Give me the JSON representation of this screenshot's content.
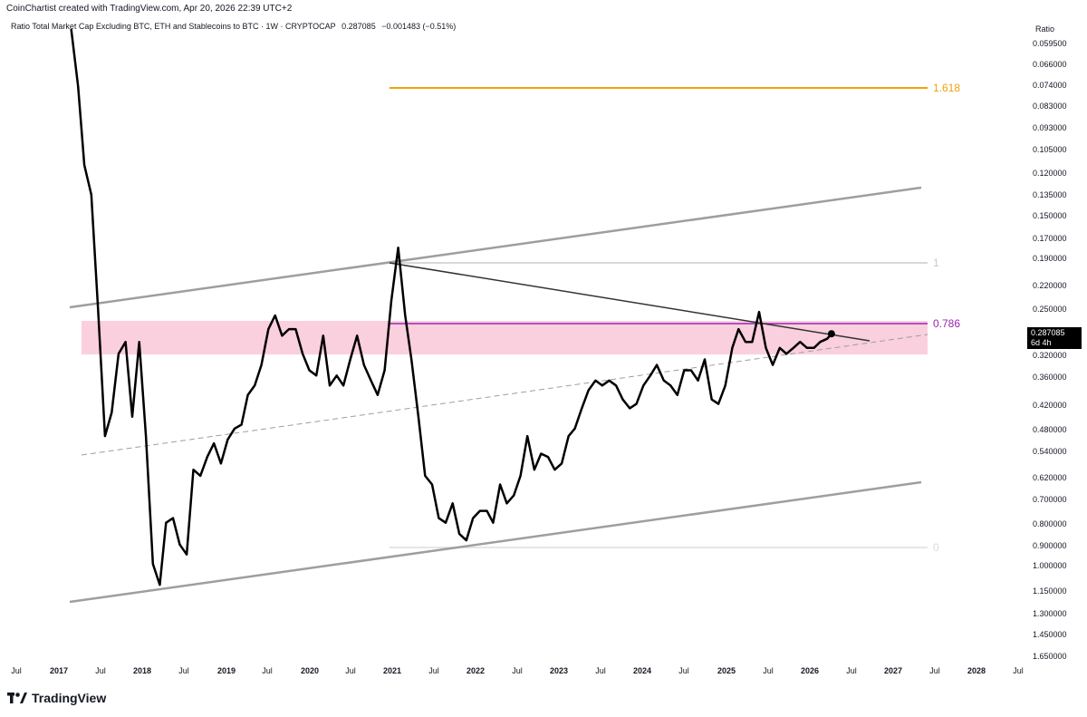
{
  "header": {
    "credit": "CoinChartist created with TradingView.com, Apr 20, 2026 22:39 UTC+2",
    "symbol": "Ratio Total Market Cap Excluding BTC, ETH and Stablecoins to BTC · 1W · CRYPTOCAP",
    "price": "0.287085",
    "change": "−0.001483 (−0.51%)"
  },
  "price_scale": {
    "title": "Ratio",
    "labels": [
      "0.059500",
      "0.066000",
      "0.074000",
      "0.083000",
      "0.093000",
      "0.105000",
      "0.120000",
      "0.135000",
      "0.150000",
      "0.170000",
      "0.190000",
      "0.220000",
      "0.250000",
      "0.320000",
      "0.360000",
      "0.420000",
      "0.480000",
      "0.540000",
      "0.620000",
      "0.700000",
      "0.800000",
      "0.900000",
      "1.000000",
      "1.150000",
      "1.300000",
      "1.450000",
      "1.650000"
    ],
    "current_value": "0.287085",
    "countdown": "6d 4h"
  },
  "time_axis": [
    "Jul",
    "2017",
    "Jul",
    "2018",
    "Jul",
    "2019",
    "Jul",
    "2020",
    "Jul",
    "2021",
    "Jul",
    "2022",
    "Jul",
    "2023",
    "Jul",
    "2024",
    "Jul",
    "2025",
    "Jul",
    "2026",
    "Jul",
    "2027",
    "Jul",
    "2028",
    "Jul"
  ],
  "fib_levels": [
    {
      "label": "1.618",
      "value": 0.074,
      "color": "#f0a30a"
    },
    {
      "label": "1",
      "value": 0.19,
      "color": "#c8c8c8"
    },
    {
      "label": "0.786",
      "value": 0.275,
      "color": "#9c27b0"
    },
    {
      "label": "0",
      "value": 0.9,
      "color": "#d9d9d9"
    }
  ],
  "colors": {
    "series": "#000000",
    "channel": "#9e9e9e",
    "zone": "#f8bbd0",
    "fib_golden": "#f0a30a",
    "fib_786": "#9c27b0"
  },
  "chart_data": {
    "type": "line",
    "title": "Ratio Total Market Cap Excluding BTC, ETH and Stablecoins to BTC · 1W · CRYPTOCAP",
    "ylabel": "Ratio",
    "y_scale": "log-inverted",
    "ylim": [
      0.0595,
      1.65
    ],
    "xlim": [
      "2016-05-01",
      "2028-08-01"
    ],
    "x": [
      "2017-01-01",
      "2017-02-01",
      "2017-03-01",
      "2017-04-01",
      "2017-05-01",
      "2017-06-01",
      "2017-07-01",
      "2017-08-01",
      "2017-09-01",
      "2017-10-01",
      "2017-11-01",
      "2017-12-01",
      "2018-01-01",
      "2018-02-01",
      "2018-03-01",
      "2018-04-01",
      "2018-05-01",
      "2018-06-01",
      "2018-07-01",
      "2018-08-01",
      "2018-09-01",
      "2018-10-01",
      "2018-11-01",
      "2018-12-01",
      "2019-01-01",
      "2019-02-01",
      "2019-03-01",
      "2019-04-01",
      "2019-05-01",
      "2019-06-01",
      "2019-07-01",
      "2019-08-01",
      "2019-09-01",
      "2019-10-01",
      "2019-11-01",
      "2019-12-01",
      "2020-01-01",
      "2020-02-01",
      "2020-03-01",
      "2020-04-01",
      "2020-05-01",
      "2020-06-01",
      "2020-07-01",
      "2020-08-01",
      "2020-09-01",
      "2020-10-01",
      "2020-11-01",
      "2020-12-01",
      "2021-01-01",
      "2021-02-01",
      "2021-03-01",
      "2021-04-01",
      "2021-05-01",
      "2021-06-01",
      "2021-07-01",
      "2021-08-01",
      "2021-09-01",
      "2021-10-01",
      "2021-11-01",
      "2021-12-01",
      "2022-01-01",
      "2022-02-01",
      "2022-03-01",
      "2022-04-01",
      "2022-05-01",
      "2022-06-01",
      "2022-07-01",
      "2022-08-01",
      "2022-09-01",
      "2022-10-01",
      "2022-11-01",
      "2022-12-01",
      "2023-01-01",
      "2023-02-01",
      "2023-03-01",
      "2023-04-01",
      "2023-05-01",
      "2023-06-01",
      "2023-07-01",
      "2023-08-01",
      "2023-09-01",
      "2023-10-01",
      "2023-11-01",
      "2023-12-01",
      "2024-01-01",
      "2024-02-01",
      "2024-03-01",
      "2024-04-01",
      "2024-05-01",
      "2024-06-01",
      "2024-07-01",
      "2024-08-01",
      "2024-09-01",
      "2024-10-01",
      "2024-11-01",
      "2024-12-01",
      "2025-01-01",
      "2025-02-01",
      "2025-03-01",
      "2025-04-01",
      "2025-05-01",
      "2025-06-01",
      "2025-07-01",
      "2025-08-01",
      "2025-09-01",
      "2025-10-01",
      "2025-11-01",
      "2025-12-01",
      "2026-01-01",
      "2026-02-01",
      "2026-03-01",
      "2026-04-01",
      "2026-04-20"
    ],
    "series": [
      {
        "values": [
          0.055,
          0.075,
          0.115,
          0.135,
          0.25,
          0.5,
          0.44,
          0.32,
          0.3,
          0.45,
          0.3,
          0.5,
          1.0,
          1.12,
          0.8,
          0.78,
          0.9,
          0.95,
          0.6,
          0.62,
          0.56,
          0.52,
          0.58,
          0.51,
          0.48,
          0.47,
          0.4,
          0.38,
          0.34,
          0.28,
          0.26,
          0.29,
          0.28,
          0.28,
          0.32,
          0.35,
          0.36,
          0.29,
          0.38,
          0.36,
          0.38,
          0.33,
          0.29,
          0.34,
          0.37,
          0.4,
          0.35,
          0.24,
          0.18,
          0.26,
          0.33,
          0.45,
          0.62,
          0.65,
          0.78,
          0.8,
          0.72,
          0.85,
          0.88,
          0.78,
          0.75,
          0.75,
          0.8,
          0.65,
          0.72,
          0.69,
          0.62,
          0.5,
          0.6,
          0.55,
          0.56,
          0.6,
          0.58,
          0.5,
          0.48,
          0.43,
          0.39,
          0.37,
          0.38,
          0.37,
          0.38,
          0.41,
          0.43,
          0.42,
          0.38,
          0.36,
          0.34,
          0.37,
          0.38,
          0.4,
          0.35,
          0.35,
          0.37,
          0.33,
          0.41,
          0.42,
          0.38,
          0.31,
          0.28,
          0.3,
          0.3,
          0.255,
          0.31,
          0.34,
          0.31,
          0.32,
          0.31,
          0.3,
          0.31,
          0.31,
          0.3,
          0.295,
          0.287085
        ]
      }
    ]
  }
}
